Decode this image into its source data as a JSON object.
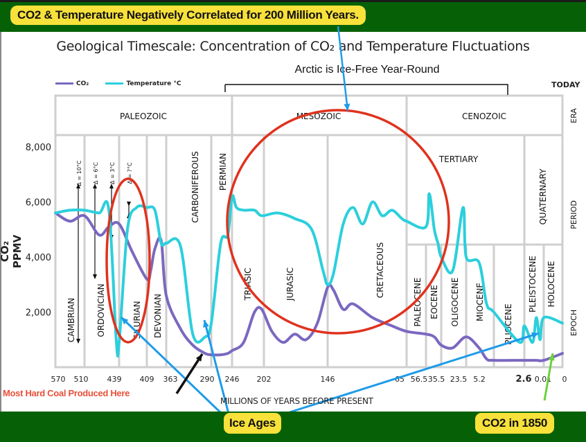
{
  "banner_top": {
    "text": "CO2 & Temperature Negatively Correlated for 200 Million Years."
  },
  "annotations": {
    "arctic": "Arctic is Ice-Free Year-Round",
    "coal": "Most Hard Coal Produced Here",
    "ice_ages": "Ice Ages",
    "co2_1850": "CO2 in 1850",
    "today": "TODAY"
  },
  "chart_data": {
    "type": "line",
    "title": "Geological Timescale: Concentration of CO₂ and Temperature Fluctuations",
    "xlabel": "MILLIONS OF YEARS BEFORE PRESENT",
    "ylabel": "CO₂ PPMV",
    "ylim": [
      0,
      8000
    ],
    "yticks": [
      "8,000",
      "6,000",
      "4,000",
      "2,000"
    ],
    "ytick_values": [
      8000,
      6000,
      4000,
      2000
    ],
    "xticks": [
      "570",
      "510",
      "439",
      "409",
      "363",
      "290",
      "246",
      "202",
      "146",
      "65",
      "56.5",
      "35.5",
      "23.5",
      "5.2",
      "2.6",
      "0.01",
      "0"
    ],
    "grid": true,
    "legend": {
      "position": "top-left",
      "entries": [
        {
          "name": "CO₂",
          "color": "#7b68c0"
        },
        {
          "name": "Temperature °C",
          "color": "#2ccfdc"
        }
      ]
    },
    "row_labels": [
      "ERA",
      "PERIOD",
      "EPOCH"
    ],
    "eras": [
      "PALEOZOIC",
      "MESOZOIC",
      "CENOZOIC"
    ],
    "periods": [
      "CAMBRIAN",
      "ORDOVICIAN",
      "SILURIAN",
      "DEVONIAN",
      "CARBONIFEROUS",
      "PERMIAN",
      "TRIASIC",
      "JURASIC",
      "CRETACEOUS",
      "TERTIARY",
      "QUATERNARY"
    ],
    "epochs": [
      "PALEOCENE",
      "EOCENE",
      "OLIGOCENE",
      "MIOCENE",
      "PLIOCENE",
      "PLEISTOCENE",
      "HOLOCENE"
    ],
    "temperature_deltas": [
      "Δ = 10°C",
      "Δ = 6°C",
      "Δ = 3°C",
      "Δ = ?°C"
    ],
    "series": [
      {
        "name": "CO₂",
        "x_mya": [
          570,
          540,
          510,
          480,
          460,
          439,
          425,
          409,
          400,
          390,
          375,
          363,
          340,
          320,
          300,
          290,
          270,
          255,
          246,
          230,
          215,
          205,
          195,
          185,
          175,
          165,
          155,
          146,
          140,
          130,
          120,
          100,
          80,
          65,
          56.5,
          45,
          35.5,
          30,
          23.5,
          15,
          10,
          5.2,
          2.6,
          1,
          0.01,
          0
        ],
        "values": [
          5600,
          5300,
          5500,
          4800,
          5100,
          5200,
          4200,
          3200,
          3500,
          4300,
          4600,
          2600,
          1400,
          800,
          500,
          450,
          450,
          500,
          600,
          900,
          2000,
          2100,
          1300,
          900,
          1200,
          1000,
          1600,
          2900,
          2800,
          2100,
          2300,
          1800,
          1500,
          1300,
          1200,
          1100,
          800,
          700,
          1100,
          700,
          300,
          250,
          250,
          250,
          250,
          500
        ]
      },
      {
        "name": "Temperature °C",
        "x_mya": [
          570,
          540,
          510,
          480,
          460,
          445,
          439,
          430,
          420,
          409,
          390,
          375,
          363,
          340,
          320,
          300,
          290,
          270,
          255,
          246,
          240,
          230,
          215,
          205,
          190,
          175,
          160,
          150,
          146,
          140,
          130,
          120,
          110,
          100,
          90,
          80,
          70,
          65,
          56.5,
          52,
          45,
          40,
          35.5,
          30,
          25,
          23.5,
          15,
          10,
          5.2,
          3,
          2.6,
          1.5,
          1,
          0.5,
          0.01,
          0
        ],
        "values": [
          5600,
          5700,
          5700,
          5600,
          5700,
          1000,
          900,
          5000,
          5800,
          5800,
          5700,
          4500,
          4500,
          4400,
          1200,
          1100,
          1600,
          4500,
          4800,
          6200,
          5800,
          5700,
          5700,
          5500,
          5600,
          5400,
          5000,
          3500,
          3000,
          3400,
          5200,
          5800,
          5200,
          6000,
          5500,
          5700,
          5400,
          5300,
          5100,
          6300,
          5000,
          4500,
          4000,
          3500,
          5800,
          4000,
          3800,
          2300,
          2000,
          900,
          1500,
          900,
          1800,
          1000,
          1800,
          1600
        ]
      }
    ]
  }
}
